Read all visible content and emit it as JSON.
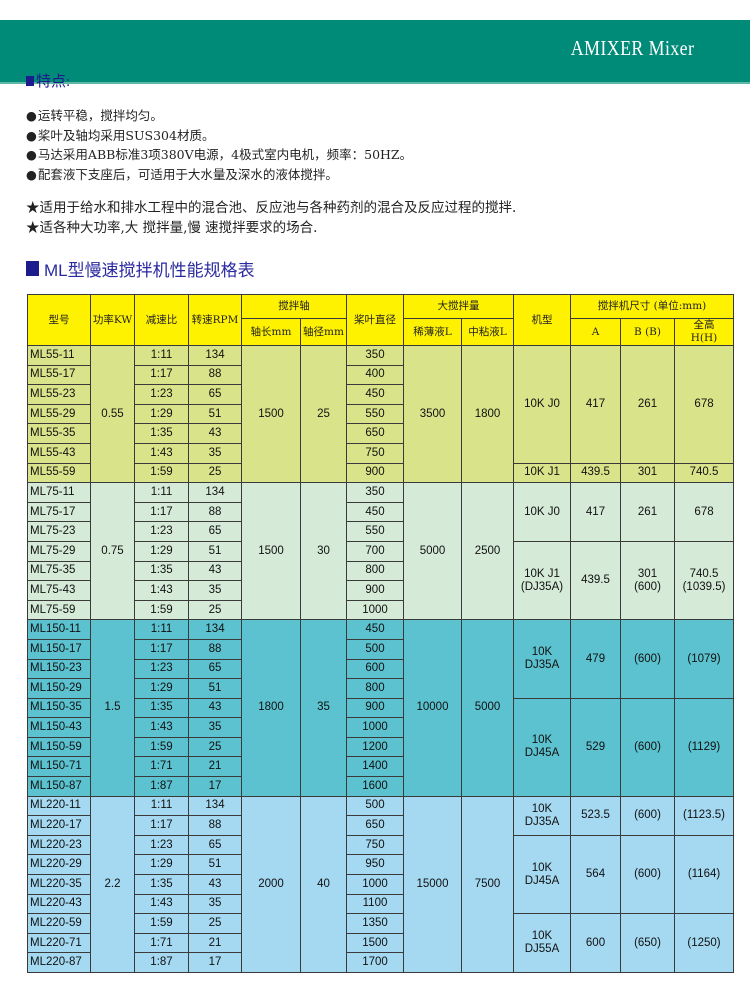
{
  "header": {
    "title": "AMIXER Mixer",
    "brand_color": "#008a78"
  },
  "features": {
    "heading": "特点:",
    "bullets": [
      "运转平稳，搅拌均匀。",
      "桨叶及轴均采用SUS304材质。",
      "马达采用ABB标准3项380V电源，4极式室内电机，频率：50HZ。",
      "配套液下支座后，可适用于大水量及深水的液体搅拌。"
    ],
    "stars": [
      "适用于给水和排水工程中的混合池、反应池与各种药剂的混合及反应过程的搅拌.",
      "适各种大功率,大  搅拌量,慢 速搅拌要求的场合."
    ]
  },
  "table": {
    "heading": "ML型慢速搅拌机性能规格表",
    "headers": {
      "model": "型号",
      "power": "功率KW",
      "ratio": "减速比",
      "rpm": "转速RPM",
      "shaft": "搅拌轴",
      "shaft_length": "轴长mm",
      "shaft_diameter": "轴径mm",
      "blade": "桨叶直径",
      "capacity": "大搅拌量",
      "thin": "稀薄液L",
      "medium": "中粘液L",
      "machine": "机型",
      "dims": "搅拌机尺寸    (单位:mm)",
      "A": "A",
      "B": "B (B)",
      "H": "全高\nH(H)"
    },
    "header_color": "#fff200",
    "groups": [
      {
        "color": "#d9e48a",
        "power": "0.55",
        "shaft_length": "1500",
        "shaft_diameter": "25",
        "thin": "3500",
        "medium": "1800",
        "rows": [
          {
            "model": "ML55-11",
            "ratio": "1:11",
            "rpm": "134",
            "blade": "350"
          },
          {
            "model": "ML55-17",
            "ratio": "1:17",
            "rpm": "88",
            "blade": "400"
          },
          {
            "model": "ML55-23",
            "ratio": "1:23",
            "rpm": "65",
            "blade": "450"
          },
          {
            "model": "ML55-29",
            "ratio": "1:29",
            "rpm": "51",
            "blade": "550"
          },
          {
            "model": "ML55-35",
            "ratio": "1:35",
            "rpm": "43",
            "blade": "650"
          },
          {
            "model": "ML55-43",
            "ratio": "1:43",
            "rpm": "35",
            "blade": "750"
          },
          {
            "model": "ML55-59",
            "ratio": "1:59",
            "rpm": "25",
            "blade": "900"
          }
        ],
        "machines": [
          {
            "type": "10K J0",
            "rows": 6,
            "A": "417",
            "B": "261",
            "H": "678"
          },
          {
            "type": "10K J1",
            "rows": 1,
            "A": "439.5",
            "B": "301",
            "H": "740.5"
          }
        ]
      },
      {
        "color": "#d5ead7",
        "power": "0.75",
        "shaft_length": "1500",
        "shaft_diameter": "30",
        "thin": "5000",
        "medium": "2500",
        "rows": [
          {
            "model": "ML75-11",
            "ratio": "1:11",
            "rpm": "134",
            "blade": "350"
          },
          {
            "model": "ML75-17",
            "ratio": "1:17",
            "rpm": "88",
            "blade": "450"
          },
          {
            "model": "ML75-23",
            "ratio": "1:23",
            "rpm": "65",
            "blade": "550"
          },
          {
            "model": "ML75-29",
            "ratio": "1:29",
            "rpm": "51",
            "blade": "700"
          },
          {
            "model": "ML75-35",
            "ratio": "1:35",
            "rpm": "43",
            "blade": "800"
          },
          {
            "model": "ML75-43",
            "ratio": "1:43",
            "rpm": "35",
            "blade": "900"
          },
          {
            "model": "ML75-59",
            "ratio": "1:59",
            "rpm": "25",
            "blade": "1000"
          }
        ],
        "machines": [
          {
            "type": "10K J0",
            "rows": 3,
            "A": "417",
            "B": "261",
            "H": "678"
          },
          {
            "type": "10K J1\n(DJ35A)",
            "rows": 4,
            "A": "439.5",
            "B": "301\n(600)",
            "H": "740.5\n(1039.5)"
          }
        ]
      },
      {
        "color": "#5cc2cf",
        "power": "1.5",
        "shaft_length": "1800",
        "shaft_diameter": "35",
        "thin": "10000",
        "medium": "5000",
        "rows": [
          {
            "model": "ML150-11",
            "ratio": "1:11",
            "rpm": "134",
            "blade": "450"
          },
          {
            "model": "ML150-17",
            "ratio": "1:17",
            "rpm": "88",
            "blade": "500"
          },
          {
            "model": "ML150-23",
            "ratio": "1:23",
            "rpm": "65",
            "blade": "600"
          },
          {
            "model": "ML150-29",
            "ratio": "1:29",
            "rpm": "51",
            "blade": "800"
          },
          {
            "model": "ML150-35",
            "ratio": "1:35",
            "rpm": "43",
            "blade": "900"
          },
          {
            "model": "ML150-43",
            "ratio": "1:43",
            "rpm": "35",
            "blade": "1000"
          },
          {
            "model": "ML150-59",
            "ratio": "1:59",
            "rpm": "25",
            "blade": "1200"
          },
          {
            "model": "ML150-71",
            "ratio": "1:71",
            "rpm": "21",
            "blade": "1400"
          },
          {
            "model": "ML150-87",
            "ratio": "1:87",
            "rpm": "17",
            "blade": "1600"
          }
        ],
        "machines": [
          {
            "type": "10K\nDJ35A",
            "rows": 4,
            "A": "479",
            "B": "(600)",
            "H": "(1079)"
          },
          {
            "type": "10K\nDJ45A",
            "rows": 5,
            "A": "529",
            "B": "(600)",
            "H": "(1129)"
          }
        ]
      },
      {
        "color": "#a5d9f2",
        "power": "2.2",
        "shaft_length": "2000",
        "shaft_diameter": "40",
        "thin": "15000",
        "medium": "7500",
        "rows": [
          {
            "model": "ML220-11",
            "ratio": "1:11",
            "rpm": "134",
            "blade": "500"
          },
          {
            "model": "ML220-17",
            "ratio": "1:17",
            "rpm": "88",
            "blade": "650"
          },
          {
            "model": "ML220-23",
            "ratio": "1:23",
            "rpm": "65",
            "blade": "750"
          },
          {
            "model": "ML220-29",
            "ratio": "1:29",
            "rpm": "51",
            "blade": "950"
          },
          {
            "model": "ML220-35",
            "ratio": "1:35",
            "rpm": "43",
            "blade": "1000"
          },
          {
            "model": "ML220-43",
            "ratio": "1:43",
            "rpm": "35",
            "blade": "1100"
          },
          {
            "model": "ML220-59",
            "ratio": "1:59",
            "rpm": "25",
            "blade": "1350"
          },
          {
            "model": "ML220-71",
            "ratio": "1:71",
            "rpm": "21",
            "blade": "1500"
          },
          {
            "model": "ML220-87",
            "ratio": "1:87",
            "rpm": "17",
            "blade": "1700"
          }
        ],
        "machines": [
          {
            "type": "10K\nDJ35A",
            "rows": 2,
            "A": "523.5",
            "B": "(600)",
            "H": "(1123.5)"
          },
          {
            "type": "10K\nDJ45A",
            "rows": 4,
            "A": "564",
            "B": "(600)",
            "H": "(1164)"
          },
          {
            "type": "10K\nDJ55A",
            "rows": 3,
            "A": "600",
            "B": "(650)",
            "H": "(1250)"
          }
        ]
      }
    ]
  }
}
